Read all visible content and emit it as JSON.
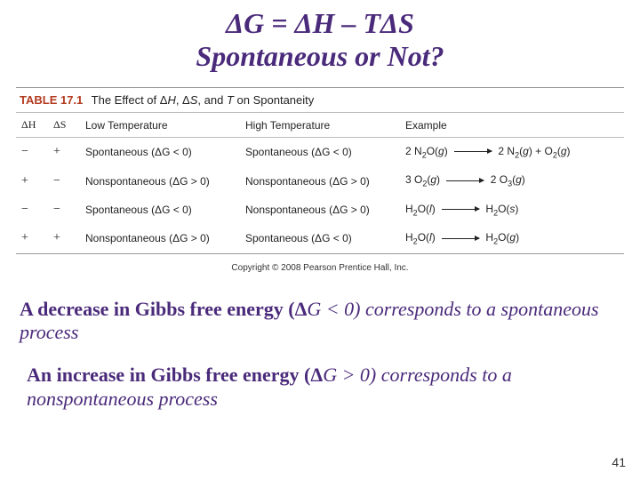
{
  "title": {
    "equation_html": "ΔG  = ΔH – TΔS",
    "subtitle": "Spontaneous or Not?",
    "color": "#4a2a7a",
    "fontsize": 32
  },
  "table": {
    "label": "TABLE 17.1",
    "caption": "The Effect of ΔH, ΔS, and T on Spontaneity",
    "headers": {
      "dh": "ΔH",
      "ds": "ΔS",
      "low": "Low Temperature",
      "high": "High Temperature",
      "example": "Example"
    },
    "rows": [
      {
        "dh": "−",
        "ds": "+",
        "low": "Spontaneous (ΔG < 0)",
        "high": "Spontaneous (ΔG < 0)",
        "ex_lhs": "2 N₂O(g)",
        "ex_rhs": "2 N₂(g) + O₂(g)"
      },
      {
        "dh": "+",
        "ds": "−",
        "low": "Nonspontaneous (ΔG > 0)",
        "high": "Nonspontaneous (ΔG > 0)",
        "ex_lhs": "3 O₂(g)",
        "ex_rhs": "2 O₃(g)"
      },
      {
        "dh": "−",
        "ds": "−",
        "low": "Spontaneous (ΔG < 0)",
        "high": "Nonspontaneous (ΔG > 0)",
        "ex_lhs": "H₂O(l)",
        "ex_rhs": "H₂O(s)"
      },
      {
        "dh": "+",
        "ds": "+",
        "low": "Nonspontaneous (ΔG > 0)",
        "high": "Spontaneous (ΔG < 0)",
        "ex_lhs": "H₂O(l)",
        "ex_rhs": "H₂O(g)"
      }
    ],
    "copyright": "Copyright © 2008 Pearson Prentice Hall, Inc.",
    "header_font": "Arial",
    "body_fontsize": 12
  },
  "para1": {
    "lead": "A decrease in Gibbs free energy (",
    "delta": "ΔG < 0) ",
    "tail": "corresponds to a spontaneous process"
  },
  "para2": {
    "lead": "An increase in Gibbs free energy (",
    "delta": "ΔG > 0) ",
    "tail": "corresponds to a nonspontaneous process"
  },
  "page_number": "41",
  "colors": {
    "accent": "#4a2a7a",
    "table_label": "#b33a1e",
    "rule": "#bbbbbb",
    "text": "#222222",
    "background": "#ffffff"
  }
}
